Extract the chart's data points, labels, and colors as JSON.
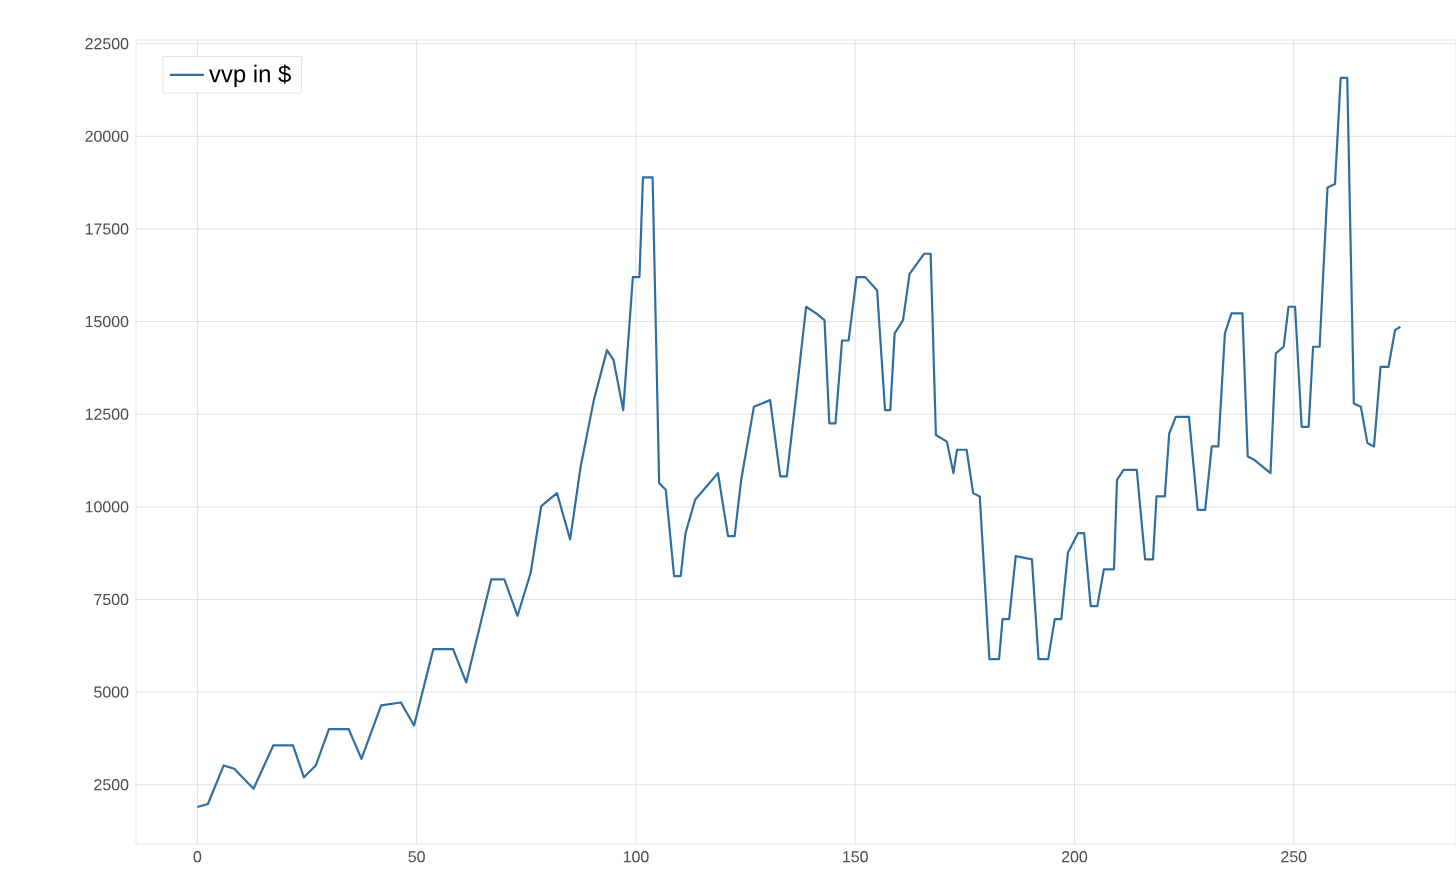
{
  "chart_data": {
    "type": "line",
    "xlim": [
      -14,
      287
    ],
    "ylim": [
      900,
      22600
    ],
    "xticks": [
      0,
      50,
      100,
      150,
      200,
      250
    ],
    "yticks": [
      2500,
      5000,
      7500,
      10000,
      12500,
      15000,
      17500,
      20000,
      22500
    ],
    "grid": true,
    "legend": "top left",
    "marker": "none",
    "line_style": "solid",
    "series": [
      {
        "name": "vvp in $",
        "color": "#2f6f9f",
        "x": [
          0,
          2.4,
          6,
          8.4,
          12.8,
          17.3,
          21.8,
          24.3,
          27,
          30,
          34.5,
          37.4,
          41.9,
          46.4,
          49.4,
          53.8,
          58.3,
          61.3,
          67,
          70,
          73,
          76,
          78.4,
          82,
          85,
          87.4,
          90.4,
          93.4,
          94.9,
          97.1,
          99.3,
          100.8,
          101.6,
          103.8,
          105.3,
          106.8,
          108.7,
          110.2,
          111.3,
          113.5,
          118.7,
          121,
          122.5,
          124,
          126.9,
          130.6,
          132.9,
          134.4,
          136.6,
          138.8,
          141.1,
          143,
          144.1,
          145.5,
          147,
          148.5,
          150.3,
          152.3,
          155,
          156.8,
          158,
          159,
          160.9,
          162.4,
          165.7,
          167.2,
          168.4,
          170.9,
          172.4,
          173.2,
          175.4,
          176.9,
          178.4,
          180.6,
          182.8,
          183.6,
          185.1,
          186.6,
          190.3,
          191.8,
          194,
          195.5,
          197,
          198.5,
          200.8,
          202.2,
          203.7,
          205.2,
          206.7,
          209,
          209.7,
          211.2,
          214.2,
          216.1,
          217.9,
          218.7,
          220.6,
          221.6,
          223.1,
          226.1,
          228.1,
          229.8,
          231.3,
          232.8,
          234.3,
          235.8,
          238.3,
          239.5,
          241,
          244.7,
          245.9,
          247.7,
          248.8,
          250.3,
          251.8,
          253.4,
          254.4,
          255.9,
          257.7,
          259.4,
          260.7,
          262.2,
          263.7,
          265.3,
          266.8,
          268.3,
          269.8,
          271.6,
          273.1,
          274.3
        ],
        "values": [
          1900,
          1980,
          3020,
          2930,
          2390,
          3560,
          3560,
          2700,
          3020,
          4000,
          4000,
          3200,
          4640,
          4720,
          4100,
          6160,
          6160,
          5260,
          8040,
          8040,
          7060,
          8220,
          10020,
          10370,
          9120,
          11090,
          12880,
          14230,
          13960,
          12610,
          16200,
          16200,
          18890,
          18890,
          10640,
          10460,
          8130,
          8130,
          9290,
          10190,
          10910,
          9210,
          9210,
          10730,
          12700,
          12880,
          10820,
          10820,
          13060,
          15400,
          15220,
          15040,
          12250,
          12250,
          14490,
          14490,
          16200,
          16200,
          15840,
          12610,
          12610,
          14680,
          15040,
          16290,
          16830,
          16830,
          11940,
          11760,
          10910,
          11540,
          11540,
          10370,
          10280,
          5890,
          5890,
          6970,
          6970,
          8670,
          8580,
          5890,
          5890,
          6970,
          6970,
          8760,
          9290,
          9290,
          7320,
          7320,
          8310,
          8310,
          10730,
          11000,
          11000,
          8580,
          8580,
          10280,
          10280,
          11980,
          12430,
          12430,
          9920,
          9920,
          11630,
          11630,
          14680,
          15220,
          15220,
          11360,
          11270,
          10910,
          14140,
          14320,
          15400,
          15400,
          12160,
          12160,
          14320,
          14320,
          18620,
          18710,
          21580,
          21580,
          12790,
          12700,
          11720,
          11630,
          13780,
          13780,
          14770,
          14860
        ]
      }
    ]
  }
}
